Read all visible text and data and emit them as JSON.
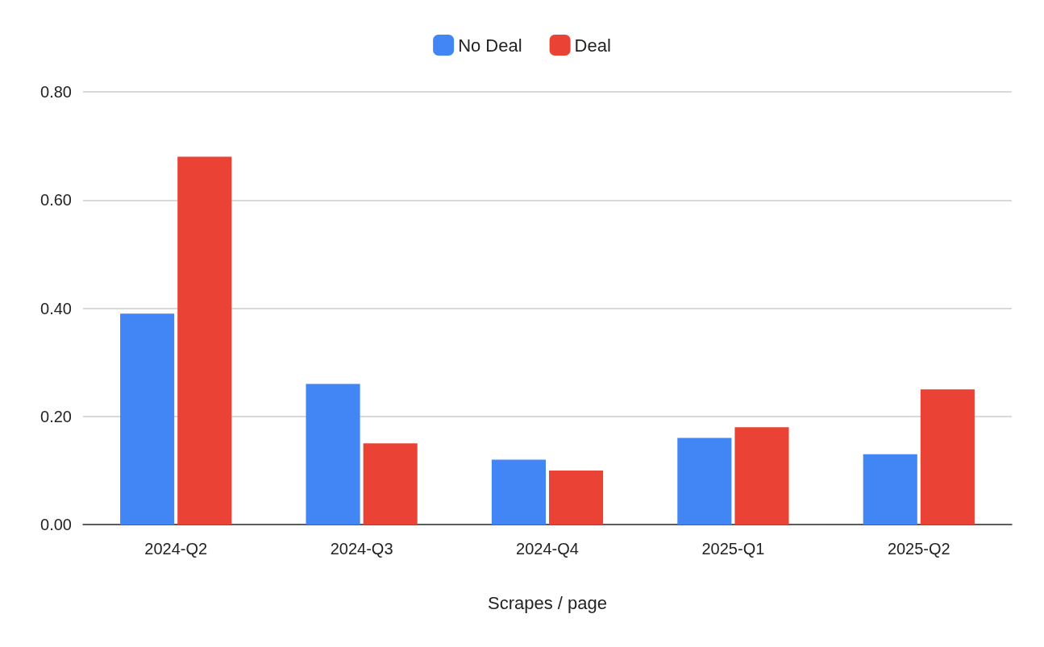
{
  "chart_data": {
    "type": "bar",
    "xlabel": "Scrapes / page",
    "categories": [
      "2024-Q2",
      "2024-Q3",
      "2024-Q4",
      "2025-Q1",
      "2025-Q2"
    ],
    "series": [
      {
        "name": "No Deal",
        "color": "#4285f4",
        "values": [
          0.39,
          0.26,
          0.12,
          0.16,
          0.13
        ]
      },
      {
        "name": "Deal",
        "color": "#ea4335",
        "values": [
          0.68,
          0.15,
          0.1,
          0.18,
          0.25
        ]
      }
    ],
    "ylim": [
      0,
      0.8
    ],
    "yticks": [
      {
        "value": 0,
        "label": "0.00"
      },
      {
        "value": 0.2,
        "label": "0.20"
      },
      {
        "value": 0.4,
        "label": "0.40"
      },
      {
        "value": 0.6,
        "label": "0.60"
      },
      {
        "value": 0.8,
        "label": "0.80"
      }
    ],
    "grid": "y",
    "legend": "top"
  }
}
